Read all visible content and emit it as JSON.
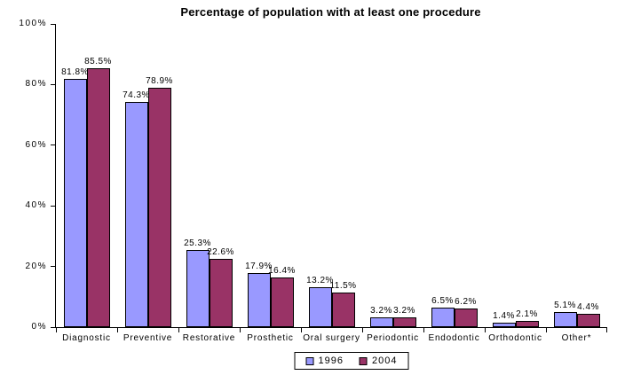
{
  "chart_data": {
    "type": "bar",
    "title": "Percentage of population with at least one procedure",
    "categories": [
      "Diagnostic",
      "Preventive",
      "Restorative",
      "Prosthetic",
      "Oral surgery",
      "Periodontic",
      "Endodontic",
      "Orthodontic",
      "Other*"
    ],
    "series": [
      {
        "name": "1996",
        "color": "#9999FF",
        "values": [
          81.8,
          74.3,
          25.3,
          17.9,
          13.2,
          3.2,
          6.5,
          1.4,
          5.1
        ],
        "data_labels": [
          "81.8%",
          "74.3%",
          "25.3%",
          "17.9%",
          "13.2%",
          "3.2%",
          "6.5%",
          "1.4%",
          "5.1%"
        ]
      },
      {
        "name": "2004",
        "color": "#993366",
        "values": [
          85.5,
          78.9,
          22.6,
          16.4,
          11.5,
          3.2,
          6.2,
          2.1,
          4.4
        ],
        "data_labels": [
          "85.5%",
          "78.9%",
          "22.6%",
          "16.4%",
          "11.5%",
          "3.2%",
          "6.2%",
          "2.1%",
          "4.4%"
        ]
      }
    ],
    "ylim": [
      0,
      100
    ],
    "ytick_step": 20,
    "ytick_labels": [
      "0%",
      "20%",
      "40%",
      "60%",
      "80%",
      "100%"
    ],
    "grid": false,
    "legend_position": "bottom",
    "axis_color": "#000000",
    "background_color": "#FFFFFF"
  }
}
